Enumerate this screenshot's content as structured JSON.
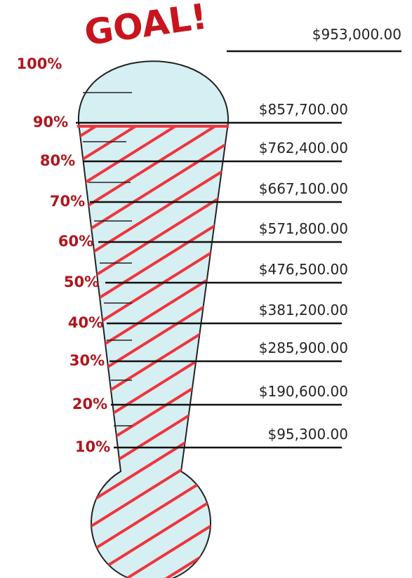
{
  "title": "GOAL!",
  "goal": {
    "percent": "100%",
    "amount": "$953,000.00"
  },
  "levels": [
    {
      "percent": "90%",
      "amount": "$857,700.00"
    },
    {
      "percent": "80%",
      "amount": "$762,400.00"
    },
    {
      "percent": "70%",
      "amount": "$667,100.00"
    },
    {
      "percent": "60%",
      "amount": "$571,800.00"
    },
    {
      "percent": "50%",
      "amount": "$476,500.00"
    },
    {
      "percent": "40%",
      "amount": "$381,200.00"
    },
    {
      "percent": "30%",
      "amount": "$285,900.00"
    },
    {
      "percent": "20%",
      "amount": "$190,600.00"
    },
    {
      "percent": "10%",
      "amount": "$95,300.00"
    }
  ]
}
